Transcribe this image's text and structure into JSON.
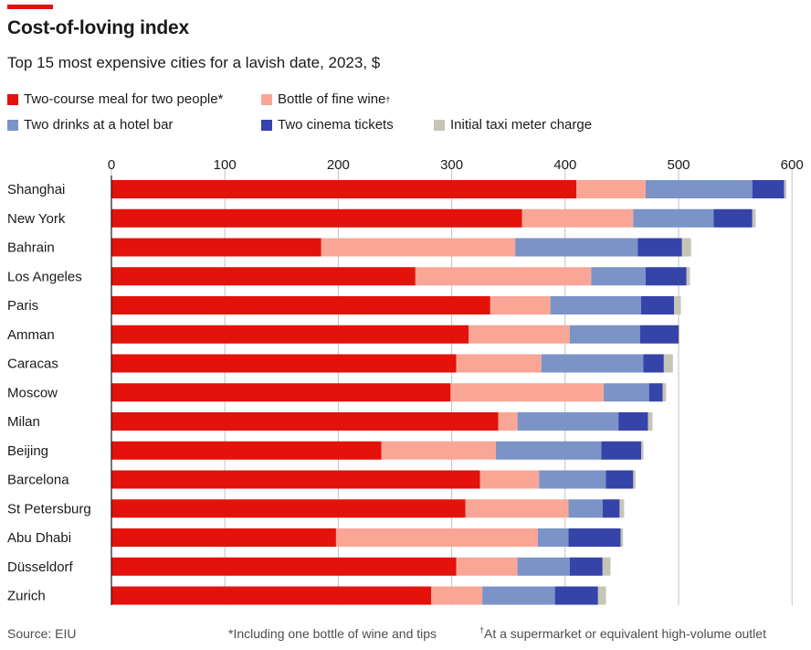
{
  "header": {
    "title": "Cost-of-loving index",
    "subtitle": "Top 15 most expensive cities for a lavish date, 2023, $"
  },
  "legend": [
    {
      "label": "Two-course meal for two people",
      "mark": "*",
      "color": "#e3120b"
    },
    {
      "label": "Bottle of fine wine",
      "mark": "†",
      "color": "#f9a697"
    },
    {
      "label": "Two drinks at a hotel bar",
      "mark": "",
      "color": "#7b93c7"
    },
    {
      "label": "Two cinema tickets",
      "mark": "",
      "color": "#3643a9"
    },
    {
      "label": "Initial taxi meter charge",
      "mark": "",
      "color": "#c6c5b6"
    }
  ],
  "footer": {
    "source": "Source: EIU",
    "note1": "*Including one bottle of wine and tips",
    "note2_mark": "†",
    "note2": "At a supermarket or equivalent high-volume outlet"
  },
  "chart_data": {
    "type": "bar",
    "orientation": "horizontal",
    "stacked": true,
    "xlim": [
      0,
      600
    ],
    "xticks": [
      0,
      100,
      200,
      300,
      400,
      500,
      600
    ],
    "grid": true,
    "legend_position": "top",
    "categories": [
      "Shanghai",
      "New York",
      "Bahrain",
      "Los Angeles",
      "Paris",
      "Amman",
      "Caracas",
      "Moscow",
      "Milan",
      "Beijing",
      "Barcelona",
      "St Petersburg",
      "Abu Dhabi",
      "Düsseldorf",
      "Zurich"
    ],
    "series": [
      {
        "name": "Two-course meal for two people*",
        "color": "#e3120b",
        "values": [
          410,
          362,
          185,
          268,
          334,
          315,
          304,
          299,
          341,
          238,
          325,
          312,
          198,
          304,
          282
        ]
      },
      {
        "name": "Bottle of fine wine†",
        "color": "#f9a697",
        "values": [
          61,
          98,
          171,
          155,
          53,
          89,
          75,
          135,
          17,
          101,
          52,
          91,
          178,
          54,
          45
        ]
      },
      {
        "name": "Two drinks at a hotel bar",
        "color": "#7b93c7",
        "values": [
          94,
          71,
          108,
          48,
          80,
          62,
          90,
          40,
          89,
          93,
          59,
          30,
          27,
          46,
          64
        ]
      },
      {
        "name": "Two cinema tickets",
        "color": "#3643a9",
        "values": [
          28,
          34,
          39,
          36,
          29,
          34,
          18,
          12,
          26,
          35,
          24,
          15,
          46,
          29,
          38
        ]
      },
      {
        "name": "Initial taxi meter charge",
        "color": "#c6c5b6",
        "values": [
          2,
          3,
          8,
          3,
          6,
          1,
          8,
          3,
          4,
          2,
          2,
          4,
          2,
          7,
          7
        ]
      }
    ]
  }
}
